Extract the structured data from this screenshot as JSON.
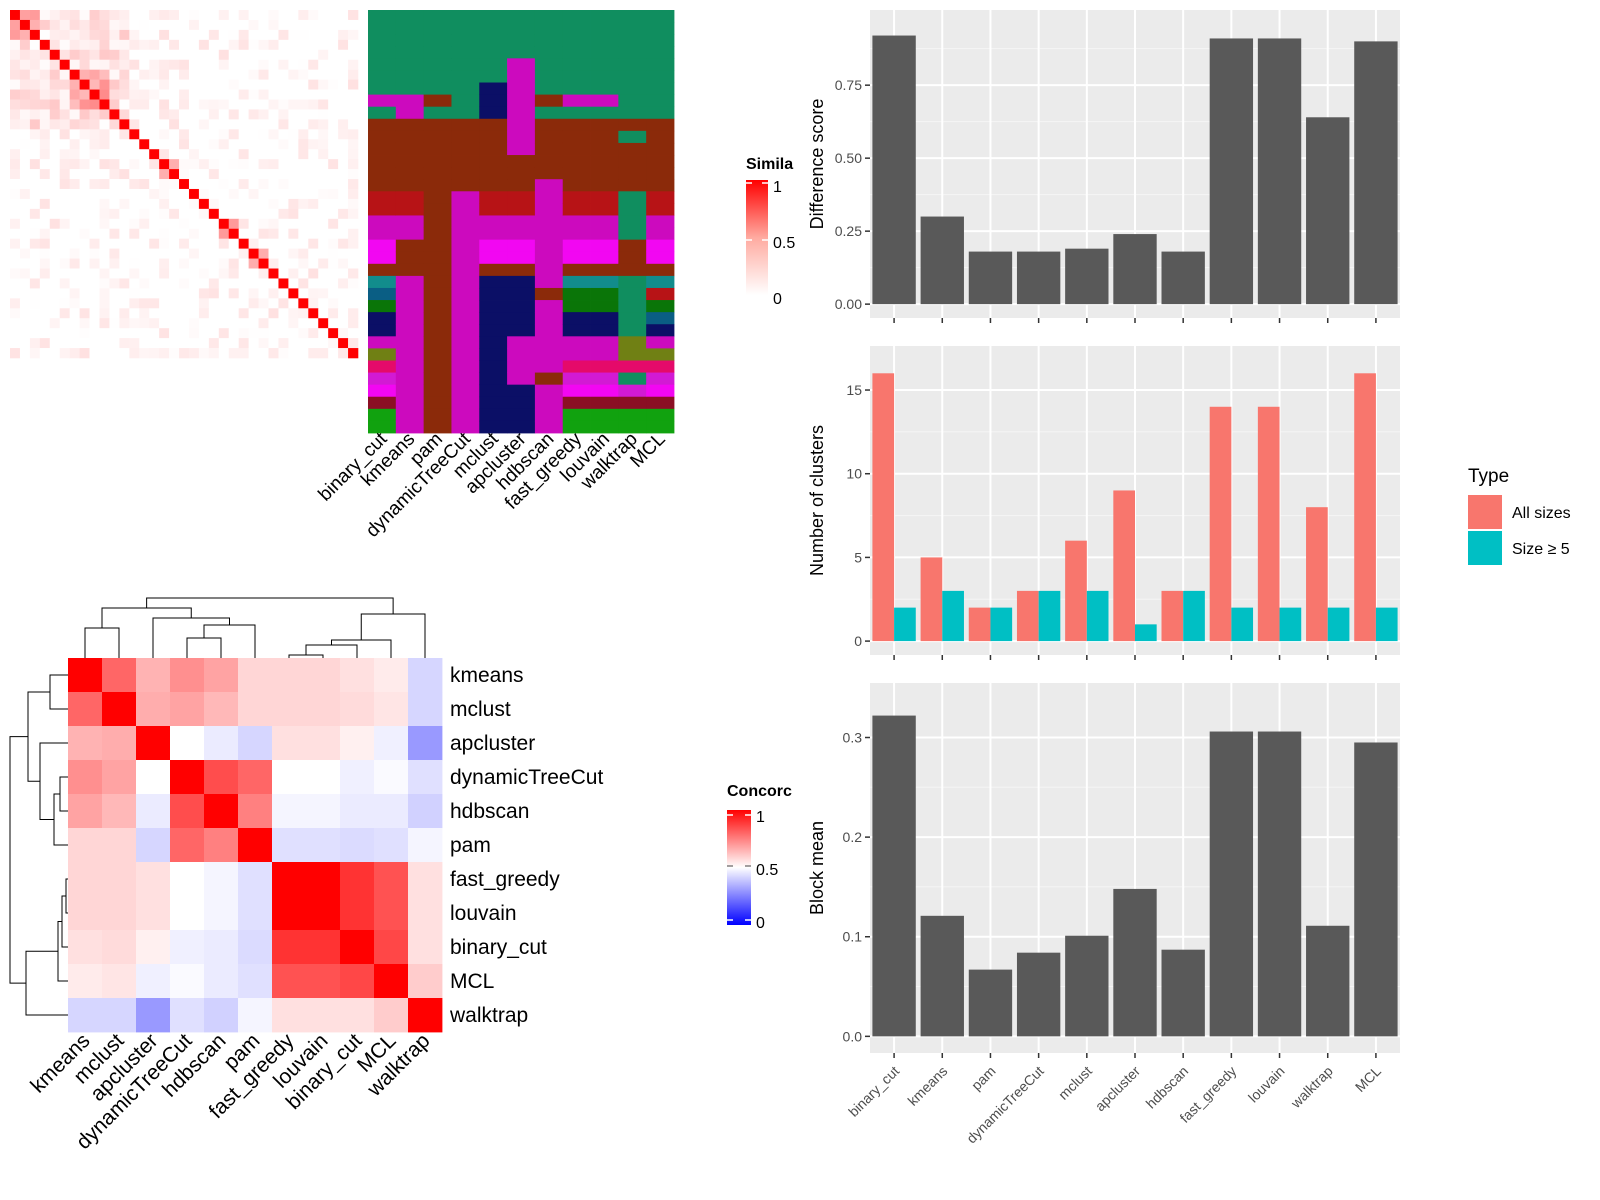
{
  "methods_order": [
    "binary_cut",
    "kmeans",
    "pam",
    "dynamicTreeCut",
    "mclust",
    "apcluster",
    "hdbscan",
    "fast_greedy",
    "louvain",
    "walktrap",
    "MCL"
  ],
  "similarity_panel": {
    "legend_title": "Simila",
    "legend_ticks": [
      "1",
      "0.5",
      "0"
    ],
    "n_terms": 35,
    "hot_blocks": [
      [
        0,
        2
      ],
      [
        6,
        9
      ],
      [
        15,
        16
      ],
      [
        21,
        22
      ],
      [
        24,
        25
      ]
    ],
    "cluster_colors": [
      "#108e5f",
      "#cc0abe",
      "#8b2a0a",
      "#0b0f66",
      "#b71316",
      "#f207f2",
      "#128c8c",
      "#0a5e84",
      "#0a7508",
      "#708014",
      "#e50a6a",
      "#d21ad4",
      "#8b0f24",
      "#11a20f"
    ],
    "cluster_palette": [
      "teal",
      "magenta",
      "brown",
      "navy",
      "crimson",
      "fuchsia",
      "cyan",
      "blue",
      "green",
      "olive",
      "pink",
      "violet",
      "maroon",
      "lime"
    ]
  },
  "concordance_panel": {
    "legend_title": "Concorc",
    "legend_ticks": [
      "1",
      "0.5",
      "0"
    ],
    "colors": {
      "high": "#ff0000",
      "mid": "#ffffff",
      "low": "#0000ff"
    },
    "row_labels": [
      "kmeans",
      "mclust",
      "apcluster",
      "dynamicTreeCut",
      "hdbscan",
      "pam",
      "fast_greedy",
      "louvain",
      "binary_cut",
      "MCL",
      "walktrap"
    ],
    "col_labels": [
      "kmeans",
      "mclust",
      "apcluster",
      "dynamicTreeCut",
      "hdbscan",
      "pam",
      "fast_greedy",
      "louvain",
      "binary_cut",
      "MCL",
      "walktrap"
    ],
    "matrix": [
      [
        1.0,
        0.8,
        0.65,
        0.72,
        0.68,
        0.58,
        0.58,
        0.58,
        0.56,
        0.54,
        0.42
      ],
      [
        0.8,
        1.0,
        0.66,
        0.68,
        0.64,
        0.58,
        0.58,
        0.58,
        0.57,
        0.55,
        0.42
      ],
      [
        0.65,
        0.66,
        1.0,
        0.5,
        0.46,
        0.42,
        0.56,
        0.56,
        0.53,
        0.47,
        0.3
      ],
      [
        0.72,
        0.68,
        0.5,
        1.0,
        0.85,
        0.8,
        0.5,
        0.5,
        0.47,
        0.49,
        0.44
      ],
      [
        0.68,
        0.64,
        0.46,
        0.85,
        1.0,
        0.75,
        0.48,
        0.48,
        0.46,
        0.46,
        0.41
      ],
      [
        0.58,
        0.58,
        0.42,
        0.8,
        0.75,
        1.0,
        0.44,
        0.44,
        0.43,
        0.44,
        0.48
      ],
      [
        0.58,
        0.58,
        0.56,
        0.5,
        0.48,
        0.44,
        1.0,
        1.0,
        0.9,
        0.84,
        0.56
      ],
      [
        0.58,
        0.58,
        0.56,
        0.5,
        0.48,
        0.44,
        1.0,
        1.0,
        0.9,
        0.84,
        0.56
      ],
      [
        0.56,
        0.57,
        0.53,
        0.47,
        0.46,
        0.43,
        0.9,
        0.9,
        1.0,
        0.86,
        0.56
      ],
      [
        0.54,
        0.55,
        0.47,
        0.49,
        0.46,
        0.44,
        0.84,
        0.84,
        0.86,
        1.0,
        0.6
      ],
      [
        0.42,
        0.42,
        0.3,
        0.44,
        0.41,
        0.48,
        0.56,
        0.56,
        0.56,
        0.6,
        1.0
      ]
    ]
  },
  "chart_data": [
    {
      "type": "bar",
      "categories": [
        "binary_cut",
        "kmeans",
        "pam",
        "dynamicTreeCut",
        "mclust",
        "apcluster",
        "hdbscan",
        "fast_greedy",
        "louvain",
        "walktrap",
        "MCL"
      ],
      "values": [
        0.92,
        0.3,
        0.18,
        0.18,
        0.19,
        0.24,
        0.18,
        0.91,
        0.91,
        0.64,
        0.9
      ],
      "ylabel": "Difference score",
      "ylim": [
        0,
        0.96
      ],
      "yticks": [
        "0.00",
        "0.25",
        "0.50",
        "0.75"
      ],
      "color": "#595959"
    },
    {
      "type": "bar",
      "categories": [
        "binary_cut",
        "kmeans",
        "pam",
        "dynamicTreeCut",
        "mclust",
        "apcluster",
        "hdbscan",
        "fast_greedy",
        "louvain",
        "walktrap",
        "MCL"
      ],
      "series": [
        {
          "name": "All sizes",
          "values": [
            16,
            5,
            2,
            3,
            6,
            9,
            3,
            14,
            14,
            8,
            16
          ],
          "color": "#f8766d"
        },
        {
          "name": "Size ≥ 5",
          "values": [
            2,
            3,
            2,
            3,
            3,
            1,
            3,
            2,
            2,
            2,
            2
          ],
          "color": "#00bfc4"
        }
      ],
      "ylabel": "Number of clusters",
      "ylim": [
        0,
        16.8
      ],
      "yticks": [
        "0",
        "5",
        "10",
        "15"
      ],
      "legend": {
        "title": "Type",
        "position": "right"
      }
    },
    {
      "type": "bar",
      "categories": [
        "binary_cut",
        "kmeans",
        "pam",
        "dynamicTreeCut",
        "mclust",
        "apcluster",
        "hdbscan",
        "fast_greedy",
        "louvain",
        "walktrap",
        "MCL"
      ],
      "values": [
        0.322,
        0.121,
        0.067,
        0.084,
        0.101,
        0.148,
        0.087,
        0.306,
        0.306,
        0.111,
        0.295
      ],
      "ylabel": "Block mean",
      "ylim": [
        0,
        0.338
      ],
      "yticks": [
        "0.0",
        "0.1",
        "0.2",
        "0.3"
      ],
      "color": "#595959"
    }
  ]
}
